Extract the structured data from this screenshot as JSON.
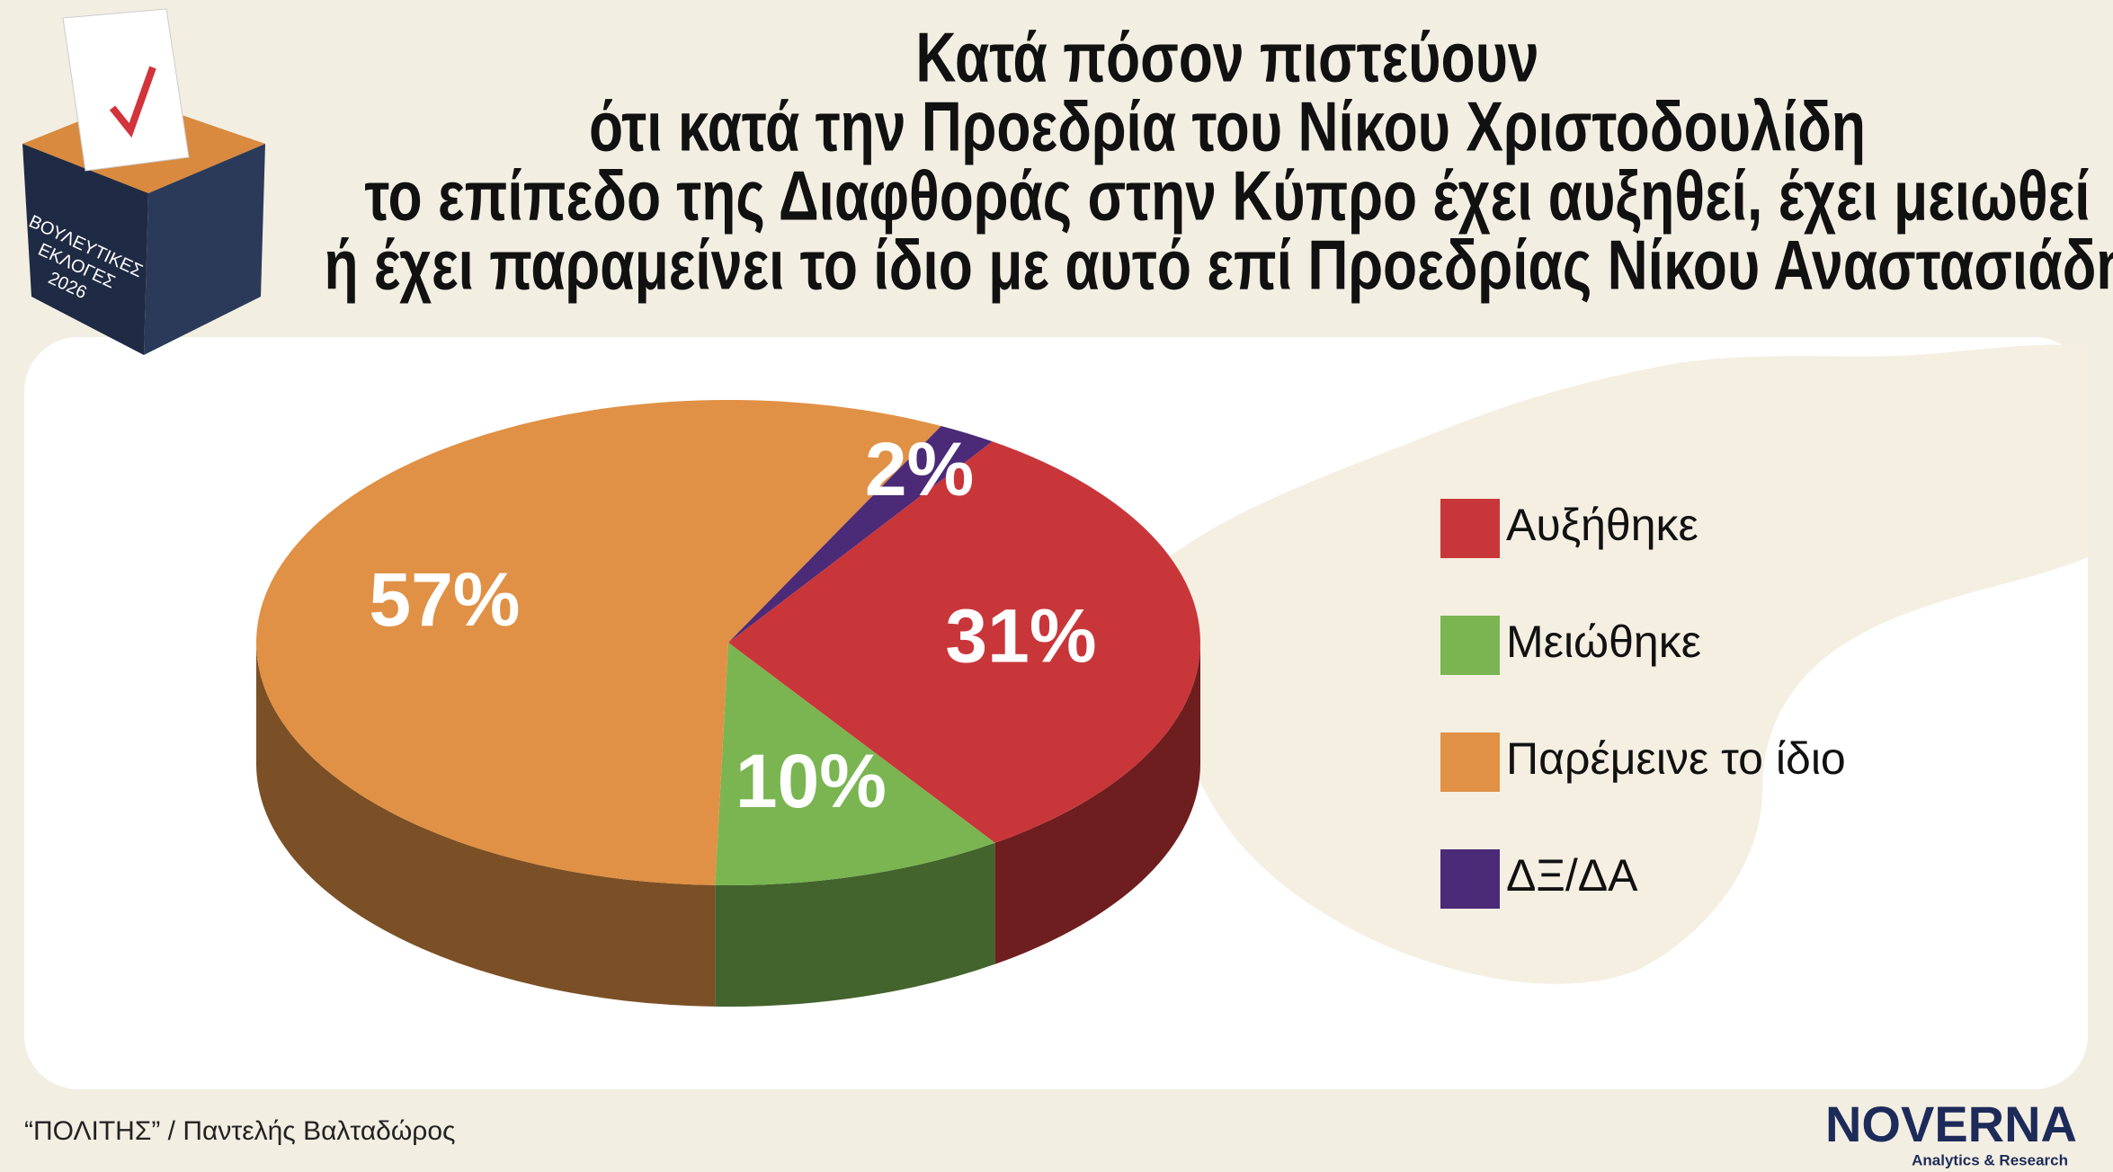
{
  "chart_data": {
    "type": "pie",
    "title": [
      "Κατά πόσον πιστεύουν",
      "ότι κατά την Προεδρία του Νίκου Χριστοδουλίδη",
      "το επίπεδο της Διαφθοράς στην Κύπρο έχει αυξηθεί, έχει μειωθεί",
      "ή έχει παραμείνει το ίδιο με αυτό επί Προεδρίας Νίκου Αναστασιάδη"
    ],
    "categories": [
      "Αυξήθηκε",
      "Μειώθηκε",
      "Παρέμεινε το ίδιο",
      "ΔΞ/ΔΑ"
    ],
    "values": [
      31,
      10,
      57,
      2
    ],
    "value_labels": [
      "31%",
      "10%",
      "57%",
      "2%"
    ],
    "colors": [
      "#c9363a",
      "#7ab551",
      "#e09145",
      "#4b2a78"
    ],
    "legend": "right",
    "source": "“ΠΟΛΙΤΗΣ” / Παντελής Βαλταδώρος",
    "logo": "NOVERNA",
    "logo_subtitle": "Analytics & Research",
    "badge": [
      "ΒΟΥΛΕΥΤΙΚΕΣ",
      "ΕΚΛΟΓΕΣ",
      "2026"
    ]
  }
}
